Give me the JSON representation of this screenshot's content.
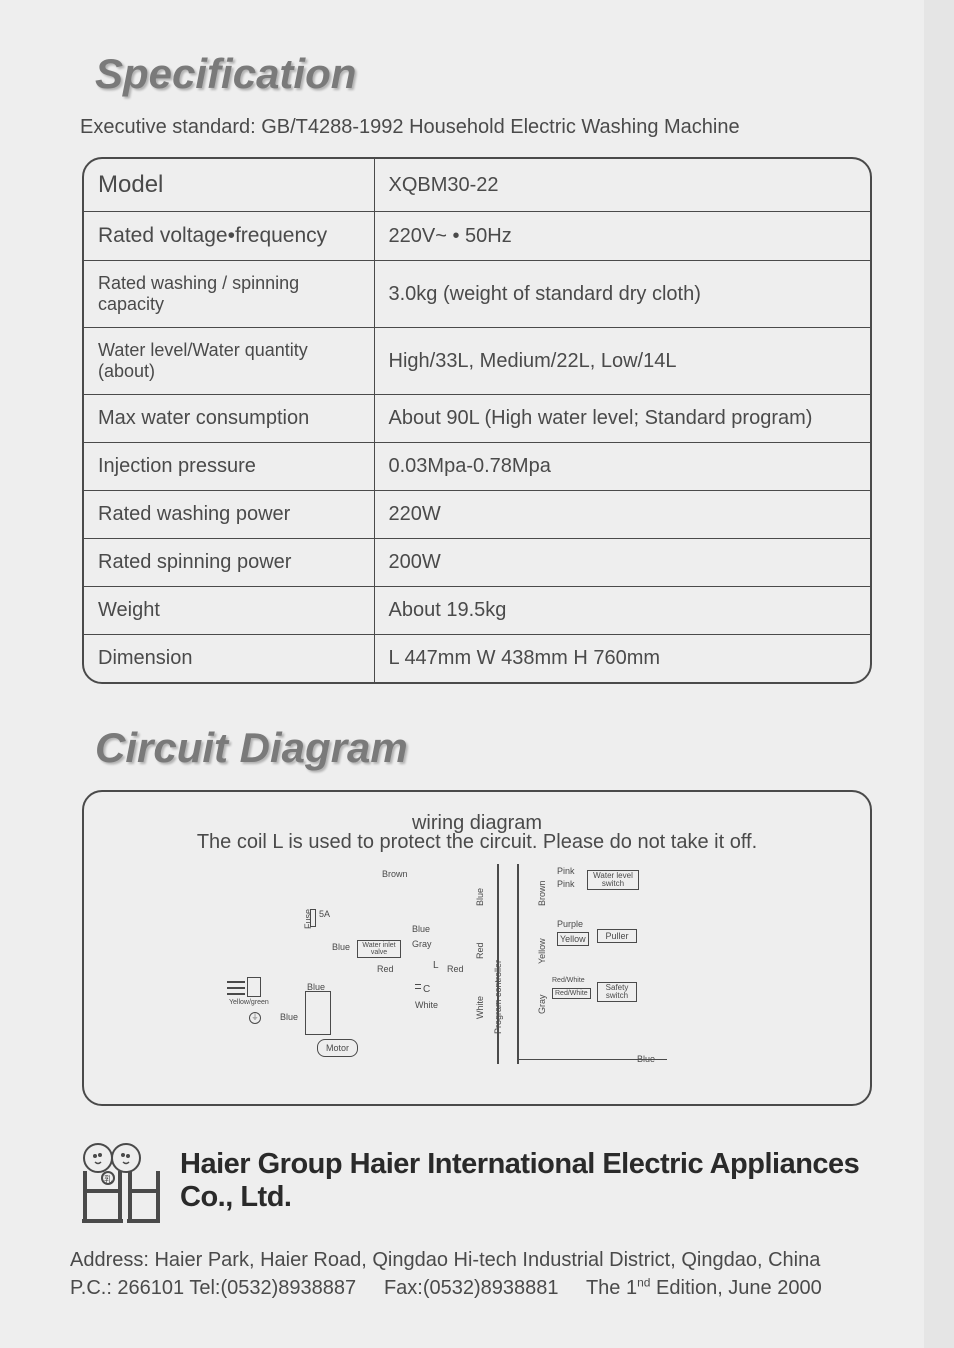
{
  "section1_title": "Specification",
  "section1_subtitle": "Executive standard: GB/T4288-1992 Household Electric Washing Machine",
  "spec_rows": [
    {
      "label": "Model",
      "value": "XQBM30-22",
      "label_fs": 24
    },
    {
      "label": "Rated voltage•frequency",
      "value": "220V~ • 50Hz",
      "label_fs": 21
    },
    {
      "label": "Rated washing / spinning capacity",
      "value": "3.0kg (weight of standard dry cloth)",
      "label_fs": 18
    },
    {
      "label": "Water level/Water quantity (about)",
      "value": "High/33L, Medium/22L, Low/14L",
      "label_fs": 18
    },
    {
      "label": "Max water consumption",
      "value": "About 90L (High water level; Standard program)",
      "label_fs": 20
    },
    {
      "label": "Injection pressure",
      "value": "0.03Mpa-0.78Mpa",
      "label_fs": 20
    },
    {
      "label": "Rated washing power",
      "value": "220W",
      "label_fs": 20
    },
    {
      "label": "Rated spinning power",
      "value": "200W",
      "label_fs": 20
    },
    {
      "label": "Weight",
      "value": "About 19.5kg",
      "label_fs": 20
    },
    {
      "label": "Dimension",
      "value": "L 447mm  W 438mm  H 760mm",
      "label_fs": 20
    }
  ],
  "section2_title": "Circuit Diagram",
  "circuit_caption": "wiring diagram",
  "circuit_note": "The coil L is used to protect the circuit. Please do not take it off.",
  "diagram": {
    "fuse": "Fuse",
    "fuse_rating": "5A",
    "water_inlet": "Water inlet valve",
    "motor": "Motor",
    "program_controller": "Program controller",
    "water_level_switch": "Water level switch",
    "puller": "Puller",
    "safety_switch": "Safety switch",
    "coil": "L",
    "cap": "C",
    "wires": {
      "brown": "Brown",
      "blue": "Blue",
      "gray": "Gray",
      "red": "Red",
      "white": "White",
      "pink": "Pink",
      "purple": "Purple",
      "yellow": "Yellow",
      "redwhite": "Red/White",
      "yellowgreen": "Yellow/green"
    }
  },
  "company_name": "Haier Group   Haier International Electric Appliances Co., Ltd.",
  "address_line1": "Address: Haier Park, Haier Road, Qingdao Hi-tech Industrial District, Qingdao, China",
  "address_line2_a": "P.C.: 266101  Tel:(0532)8938887",
  "address_line2_b": "Fax:(0532)8938881",
  "address_line2_c_pre": "The 1",
  "address_line2_c_sup": "nd",
  "address_line2_c_post": " Edition, June 2000",
  "colors": {
    "page_bg": "#eeeeee",
    "title_gray": "#7a7a7a",
    "text_gray": "#4a4a4a",
    "company_black": "#2a2a2a"
  }
}
